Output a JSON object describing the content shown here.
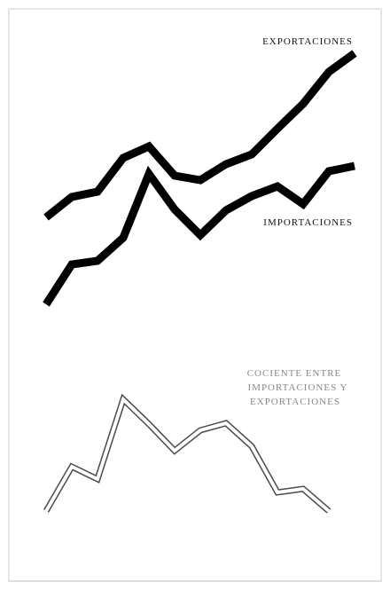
{
  "chart_data": [
    {
      "type": "line",
      "series": [
        {
          "name": "EXPORTACIONES",
          "values": [
            245,
            222,
            216,
            178,
            165,
            198,
            203,
            185,
            174,
            145,
            117,
            81,
            60
          ],
          "color": "#000000"
        },
        {
          "name": "IMPORTACIONES",
          "values": [
            343,
            298,
            294,
            268,
            196,
            236,
            265,
            237,
            221,
            210,
            230,
            193,
            187
          ],
          "color": "#000000"
        }
      ],
      "xlabel": "",
      "ylabel": "",
      "grid": false,
      "legend": "inline labels"
    },
    {
      "type": "line",
      "series": [
        {
          "name": "COCIENTE ENTRE IMPORTACIONES Y EXPORTACIONES",
          "values": [
            576,
            526,
            540,
            450,
            478,
            508,
            485,
            477,
            503,
            555,
            551,
            576
          ],
          "color": "#555555"
        }
      ],
      "xlabel": "",
      "ylabel": "",
      "grid": false,
      "legend": "inline label"
    }
  ],
  "labels": {
    "exports": "EXPORTACIONES",
    "imports": "IMPORTACIONES",
    "ratio_line1": "COCIENTE ENTRE",
    "ratio_line2": "IMPORTACIONES Y",
    "ratio_line3": "EXPORTACIONES"
  }
}
